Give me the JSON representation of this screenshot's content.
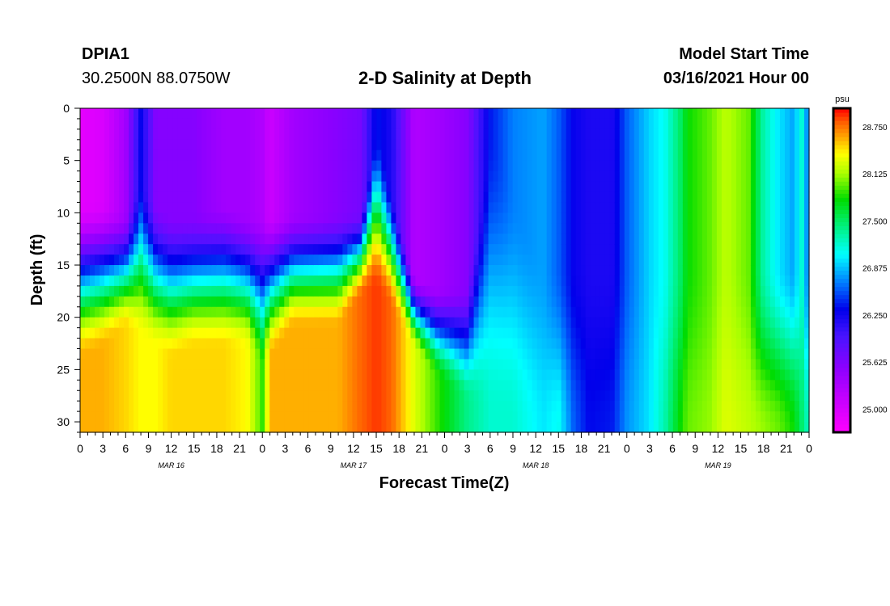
{
  "header": {
    "station_id": "DPIA1",
    "coordinates": "30.2500N 88.0750W",
    "title": "2-D Salinity at Depth",
    "model_start_label": "Model Start Time",
    "model_start_value": "03/16/2021 Hour 00"
  },
  "chart_data": {
    "type": "heatmap",
    "title": "2-D Salinity at Depth",
    "xlabel": "Forecast Time(Z)",
    "ylabel": "Depth (ft)",
    "x_hours_range": [
      0,
      96
    ],
    "y_range": [
      0,
      31
    ],
    "y_inverted": true,
    "x_tick_labels": [
      "0",
      "3",
      "6",
      "9",
      "12",
      "15",
      "18",
      "21",
      "0",
      "3",
      "6",
      "9",
      "12",
      "15",
      "18",
      "21",
      "0",
      "3",
      "6",
      "9",
      "12",
      "15",
      "18",
      "21",
      "0",
      "3",
      "6",
      "9",
      "12",
      "15",
      "18",
      "21",
      "0"
    ],
    "y_tick_labels": [
      "0",
      "5",
      "10",
      "15",
      "20",
      "25",
      "30"
    ],
    "y_tick_values": [
      0,
      5,
      10,
      15,
      20,
      25,
      30
    ],
    "day_labels": [
      {
        "text": "MAR 16",
        "hour": 12
      },
      {
        "text": "MAR 17",
        "hour": 36
      },
      {
        "text": "MAR 18",
        "hour": 60
      },
      {
        "text": "MAR 19",
        "hour": 84
      }
    ],
    "colorbar": {
      "unit": "psu",
      "range": [
        24.7,
        29.0
      ],
      "tick_labels": [
        "28.750",
        "28.125",
        "27.500",
        "26.875",
        "26.250",
        "25.625",
        "25.000"
      ],
      "tick_values": [
        28.75,
        28.125,
        27.5,
        26.875,
        26.25,
        25.625,
        25.0
      ]
    },
    "columns": [
      {
        "hour": 0,
        "s_top": 24.9,
        "s_bot": 28.6,
        "d1": 9,
        "d2": 24
      },
      {
        "hour": 3,
        "s_top": 25.0,
        "s_bot": 28.6,
        "d1": 9,
        "d2": 23
      },
      {
        "hour": 6,
        "s_top": 25.4,
        "s_bot": 28.5,
        "d1": 10,
        "d2": 21
      },
      {
        "hour": 8,
        "s_top": 26.3,
        "s_bot": 28.4,
        "d1": 7,
        "d2": 22
      },
      {
        "hour": 10,
        "s_top": 25.6,
        "s_bot": 28.4,
        "d1": 9,
        "d2": 23
      },
      {
        "hour": 12,
        "s_top": 25.6,
        "s_bot": 28.5,
        "d1": 10,
        "d2": 24
      },
      {
        "hour": 15,
        "s_top": 25.6,
        "s_bot": 28.5,
        "d1": 10,
        "d2": 23
      },
      {
        "hour": 19,
        "s_top": 25.4,
        "s_bot": 28.5,
        "d1": 9,
        "d2": 23
      },
      {
        "hour": 22,
        "s_top": 25.4,
        "s_bot": 28.4,
        "d1": 10,
        "d2": 23
      },
      {
        "hour": 24,
        "s_top": 25.3,
        "s_bot": 27.9,
        "d1": 10,
        "d2": 25
      },
      {
        "hour": 25,
        "s_top": 25.1,
        "s_bot": 28.6,
        "d1": 10,
        "d2": 24
      },
      {
        "hour": 28,
        "s_top": 25.4,
        "s_bot": 28.6,
        "d1": 10,
        "d2": 21
      },
      {
        "hour": 31,
        "s_top": 25.5,
        "s_bot": 28.6,
        "d1": 10,
        "d2": 21
      },
      {
        "hour": 34,
        "s_top": 25.6,
        "s_bot": 28.6,
        "d1": 10,
        "d2": 21
      },
      {
        "hour": 37,
        "s_top": 25.7,
        "s_bot": 28.8,
        "d1": 10,
        "d2": 18
      },
      {
        "hour": 39,
        "s_top": 26.4,
        "s_bot": 28.9,
        "d1": 2,
        "d2": 17
      },
      {
        "hour": 41,
        "s_top": 26.2,
        "s_bot": 28.8,
        "d1": 8,
        "d2": 19
      },
      {
        "hour": 44,
        "s_top": 25.3,
        "s_bot": 28.3,
        "d1": 16,
        "d2": 23
      },
      {
        "hour": 47,
        "s_top": 25.4,
        "s_bot": 27.9,
        "d1": 17,
        "d2": 26
      },
      {
        "hour": 51,
        "s_top": 25.6,
        "s_bot": 27.4,
        "d1": 17,
        "d2": 28
      },
      {
        "hour": 54,
        "s_top": 26.4,
        "s_bot": 27.2,
        "d1": 2,
        "d2": 29
      },
      {
        "hour": 57,
        "s_top": 26.7,
        "s_bot": 27.2,
        "d1": 8,
        "d2": 30
      },
      {
        "hour": 61,
        "s_top": 26.8,
        "s_bot": 27.0,
        "d1": 15,
        "d2": 31
      },
      {
        "hour": 63,
        "s_top": 26.6,
        "s_bot": 27.1,
        "d1": 15,
        "d2": 31
      },
      {
        "hour": 65,
        "s_top": 26.3,
        "s_bot": 26.6,
        "d1": 15,
        "d2": 31
      },
      {
        "hour": 67,
        "s_top": 26.2,
        "s_bot": 26.35,
        "d1": 15,
        "d2": 31
      },
      {
        "hour": 70,
        "s_top": 26.2,
        "s_bot": 26.4,
        "d1": 15,
        "d2": 31
      },
      {
        "hour": 72,
        "s_top": 26.6,
        "s_bot": 26.75,
        "d1": 15,
        "d2": 31
      },
      {
        "hour": 75,
        "s_top": 26.95,
        "s_bot": 27.0,
        "d1": 15,
        "d2": 31
      },
      {
        "hour": 77,
        "s_top": 27.1,
        "s_bot": 27.3,
        "d1": 15,
        "d2": 31
      },
      {
        "hour": 79,
        "s_top": 27.5,
        "s_bot": 27.8,
        "d1": 15,
        "d2": 31
      },
      {
        "hour": 80,
        "s_top": 27.8,
        "s_bot": 28.0,
        "d1": 15,
        "d2": 31
      },
      {
        "hour": 83,
        "s_top": 28.0,
        "s_bot": 28.1,
        "d1": 15,
        "d2": 31
      },
      {
        "hour": 85,
        "s_top": 28.2,
        "s_bot": 28.3,
        "d1": 15,
        "d2": 31
      },
      {
        "hour": 88,
        "s_top": 28.0,
        "s_bot": 28.2,
        "d1": 15,
        "d2": 31
      },
      {
        "hour": 90,
        "s_top": 27.3,
        "s_bot": 28.1,
        "d1": 15,
        "d2": 31
      },
      {
        "hour": 92,
        "s_top": 27.0,
        "s_bot": 28.0,
        "d1": 15,
        "d2": 31
      },
      {
        "hour": 94,
        "s_top": 26.8,
        "s_bot": 27.8,
        "d1": 15,
        "d2": 31
      },
      {
        "hour": 95,
        "s_top": 27.2,
        "s_bot": 27.5,
        "d1": 15,
        "d2": 31
      },
      {
        "hour": 96,
        "s_top": 26.6,
        "s_bot": 27.2,
        "d1": 15,
        "d2": 31
      }
    ]
  }
}
